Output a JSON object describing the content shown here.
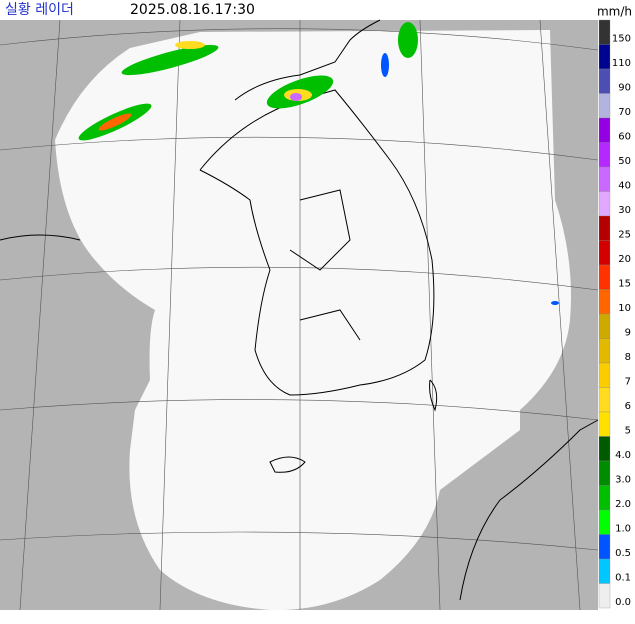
{
  "header": {
    "title": "실황 레이더",
    "time": "2025.08.16.17:30",
    "unit": "mm/h"
  },
  "legend": [
    {
      "label": "150",
      "color": "#333333"
    },
    {
      "label": "110",
      "color": "#000390"
    },
    {
      "label": "90",
      "color": "#4c4eb1"
    },
    {
      "label": "70",
      "color": "#b3b4de"
    },
    {
      "label": "60",
      "color": "#9300e4"
    },
    {
      "label": "50",
      "color": "#b329ff"
    },
    {
      "label": "40",
      "color": "#c969ff"
    },
    {
      "label": "30",
      "color": "#e0a9ff"
    },
    {
      "label": "25",
      "color": "#b40000"
    },
    {
      "label": "20",
      "color": "#d20000"
    },
    {
      "label": "15",
      "color": "#ff3200"
    },
    {
      "label": "10",
      "color": "#ff6600"
    },
    {
      "label": "9",
      "color": "#ccaa00"
    },
    {
      "label": "8",
      "color": "#e0b900"
    },
    {
      "label": "7",
      "color": "#f9cd00"
    },
    {
      "label": "6",
      "color": "#ffdc1f"
    },
    {
      "label": "5",
      "color": "#ffe100"
    },
    {
      "label": "4.0",
      "color": "#005a00"
    },
    {
      "label": "3.0",
      "color": "#008c00"
    },
    {
      "label": "2.0",
      "color": "#00be00"
    },
    {
      "label": "1.0",
      "color": "#00ff00"
    },
    {
      "label": "0.5",
      "color": "#0055ff"
    },
    {
      "label": "0.1",
      "color": "#00c8ff"
    },
    {
      "label": "0.0",
      "color": "#eeeeee"
    }
  ]
}
